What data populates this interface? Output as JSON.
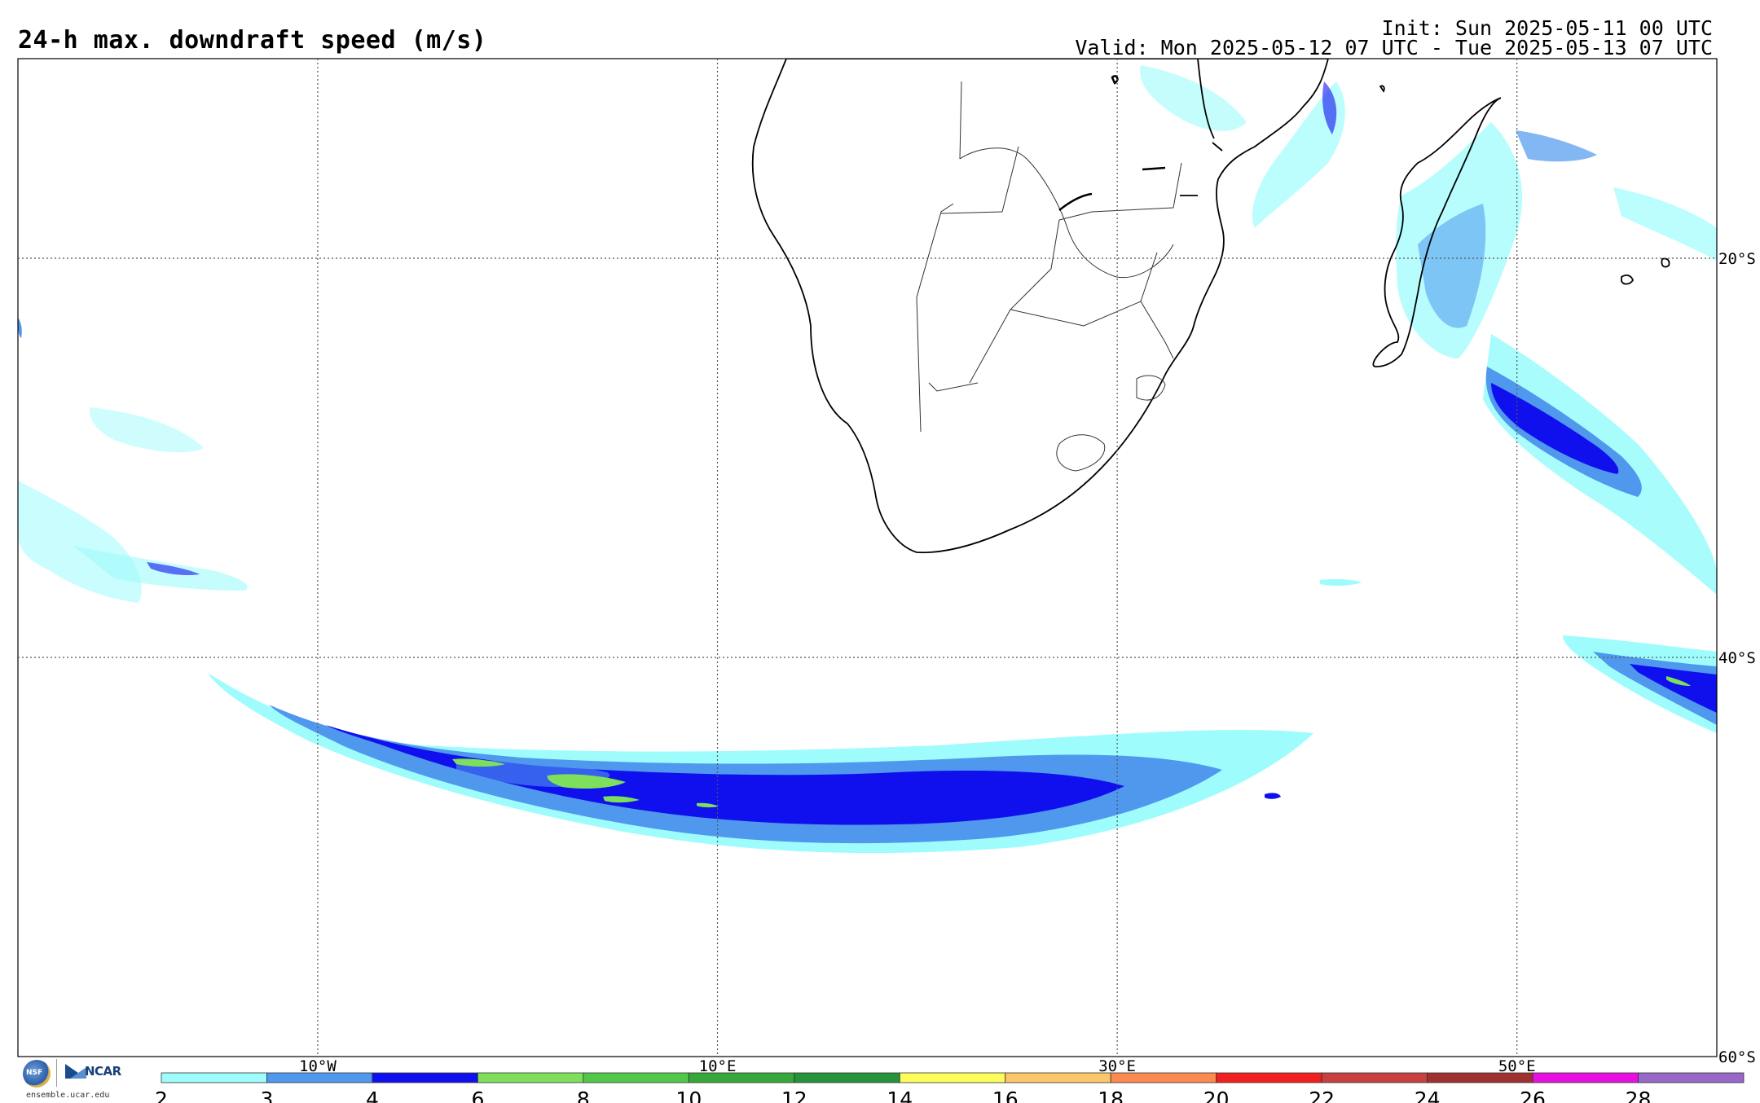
{
  "header": {
    "title": "24-h max. downdraft speed (m/s)",
    "init": "Init: Sun 2025-05-11 00 UTC",
    "valid": "Valid: Mon 2025-05-12 07 UTC - Tue 2025-05-13 07 UTC"
  },
  "map": {
    "projection": "cylindrical equidistant",
    "lon_range": [
      -25,
      60
    ],
    "lat_range": [
      -60,
      -10
    ],
    "graticule_lons": [
      -10,
      10,
      30,
      50
    ],
    "graticule_lats": [
      -20,
      -40
    ],
    "lon_labels": [
      "10°W",
      "10°E",
      "30°E",
      "50°E"
    ],
    "lat_labels": [
      "20°S",
      "40°S",
      "60°S"
    ],
    "grid_style": "dotted"
  },
  "colorbar": {
    "ticks": [
      "2",
      "3",
      "4",
      "6",
      "8",
      "10",
      "12",
      "14",
      "16",
      "18",
      "20",
      "22",
      "24",
      "26",
      "28"
    ],
    "colors": [
      "#9ffcfc",
      "#4f98ee",
      "#1010ee",
      "#7ee05a",
      "#52c84a",
      "#36a83a",
      "#26923a",
      "#fcfc5a",
      "#fcc66a",
      "#fc8a50",
      "#f02020",
      "#c84040",
      "#a03030",
      "#e810e0",
      "#9868c8"
    ]
  },
  "logo": {
    "nsf_text": "NSF",
    "ncar_text": "NCAR",
    "url": "ensemble.ucar.edu"
  }
}
